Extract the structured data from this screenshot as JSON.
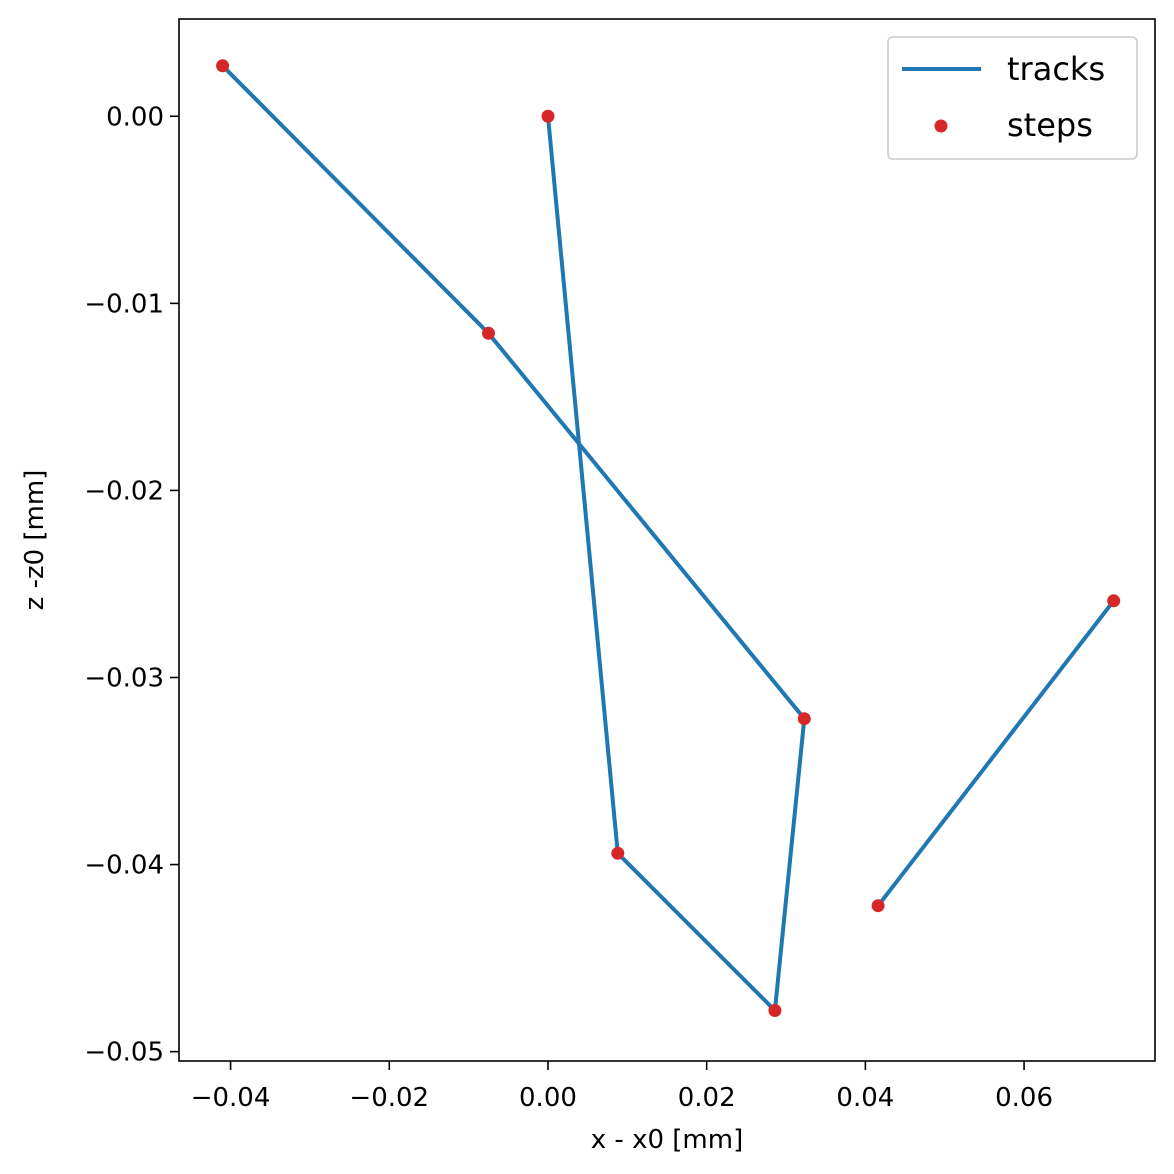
{
  "chart_data": {
    "type": "line",
    "xlabel": "x - x0 [mm]",
    "ylabel": "z -z0 [mm]",
    "xlim": [
      -0.0465,
      0.0765
    ],
    "ylim": [
      -0.0505,
      0.0052
    ],
    "grid": false,
    "x_ticks": [
      {
        "value": -0.04,
        "label": "−0.04"
      },
      {
        "value": -0.02,
        "label": "−0.02"
      },
      {
        "value": 0.0,
        "label": "0.00"
      },
      {
        "value": 0.02,
        "label": "0.02"
      },
      {
        "value": 0.04,
        "label": "0.04"
      },
      {
        "value": 0.06,
        "label": "0.06"
      }
    ],
    "y_ticks": [
      {
        "value": 0.0,
        "label": "0.00"
      },
      {
        "value": -0.01,
        "label": "−0.01"
      },
      {
        "value": -0.02,
        "label": "−0.02"
      },
      {
        "value": -0.03,
        "label": "−0.03"
      },
      {
        "value": -0.04,
        "label": "−0.04"
      },
      {
        "value": -0.05,
        "label": "−0.05"
      }
    ],
    "legend": {
      "placement": "top-right",
      "entries": [
        {
          "label": "tracks",
          "kind": "line",
          "color": "#1f77b4"
        },
        {
          "label": "steps",
          "kind": "marker",
          "color": "#d62728"
        }
      ]
    },
    "tracks": [
      {
        "points": [
          [
            0.0,
            0.0
          ],
          [
            0.0088,
            -0.0394
          ],
          [
            0.0286,
            -0.0478
          ],
          [
            0.0323,
            -0.0322
          ],
          [
            -0.0075,
            -0.0116
          ],
          [
            -0.041,
            0.0027
          ]
        ]
      },
      {
        "points": [
          [
            0.0416,
            -0.0422
          ],
          [
            0.0713,
            -0.0259
          ]
        ]
      }
    ],
    "steps": {
      "x": [
        0.0,
        0.0088,
        0.0286,
        0.0323,
        -0.0075,
        -0.041,
        0.0416,
        0.0713
      ],
      "y": [
        0.0,
        -0.0394,
        -0.0478,
        -0.0322,
        -0.0116,
        0.0027,
        -0.0422,
        -0.0259
      ]
    },
    "colors": {
      "tracks": "#1f77b4",
      "steps": "#d62728"
    }
  }
}
